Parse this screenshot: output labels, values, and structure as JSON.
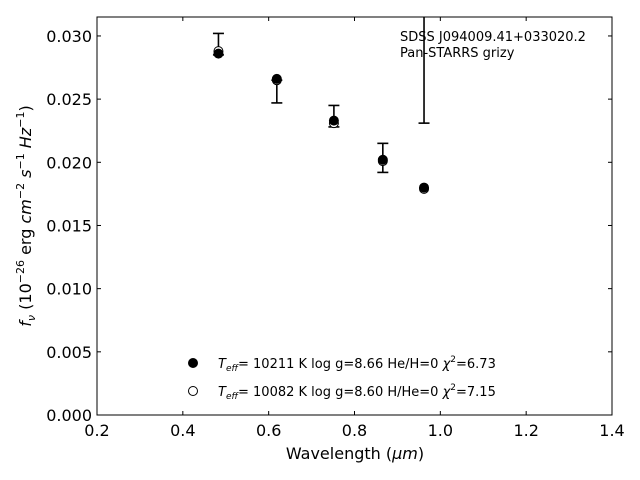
{
  "chart_data": {
    "type": "scatter",
    "title": "",
    "xlabel_main": "Wavelength (",
    "xlabel_unit": "μm",
    "xlabel_close": ")",
    "ylabel": {
      "f": "f",
      "nu": "ν",
      "open": " (10",
      "exp1": "−26",
      "erg": " erg ",
      "cm": "cm",
      "exp2": "−2",
      "s": " s",
      "exp3": "−1",
      "hz": " Hz",
      "exp4": "−1",
      "close": ")"
    },
    "xlim": [
      0.2,
      1.4
    ],
    "ylim": [
      0.0,
      0.0315
    ],
    "xticks": [
      0.2,
      0.4,
      0.6,
      0.8,
      1.0,
      1.2,
      1.4
    ],
    "xtick_labels": [
      "0.2",
      "0.4",
      "0.6",
      "0.8",
      "1.0",
      "1.2",
      "1.4"
    ],
    "yticks": [
      0.0,
      0.005,
      0.01,
      0.015,
      0.02,
      0.025,
      0.03
    ],
    "ytick_labels": [
      "0.000",
      "0.005",
      "0.010",
      "0.015",
      "0.020",
      "0.025",
      "0.030"
    ],
    "grid": false,
    "annotation": [
      "SDSS J094009.41+033020.2",
      "Pan-STARRS grizy"
    ],
    "observed": [
      {
        "x": 0.483,
        "y_low": 0.0285,
        "y_high": 0.0302
      },
      {
        "x": 0.619,
        "y_low": 0.0247,
        "y_high": 0.0265
      },
      {
        "x": 0.752,
        "y_low": 0.0228,
        "y_high": 0.0245
      },
      {
        "x": 0.866,
        "y_low": 0.0192,
        "y_high": 0.0215
      },
      {
        "x": 0.962,
        "y_low": 0.0231,
        "y_high": 0.0315
      }
    ],
    "series": [
      {
        "marker": "filled",
        "color": "#000000",
        "points": [
          {
            "x": 0.483,
            "y": 0.0286
          },
          {
            "x": 0.619,
            "y": 0.0266
          },
          {
            "x": 0.752,
            "y": 0.0233
          },
          {
            "x": 0.866,
            "y": 0.0202
          },
          {
            "x": 0.962,
            "y": 0.018
          }
        ]
      },
      {
        "marker": "open",
        "color": "#000000",
        "points": [
          {
            "x": 0.483,
            "y": 0.0288
          },
          {
            "x": 0.619,
            "y": 0.0265
          },
          {
            "x": 0.752,
            "y": 0.0231
          },
          {
            "x": 0.866,
            "y": 0.0201
          },
          {
            "x": 0.962,
            "y": 0.0179
          }
        ]
      }
    ],
    "legend": [
      {
        "marker": "filled",
        "T": "T",
        "eff": "eff",
        "rest": "= 10211 K  log g=8.66  He/H=0  ",
        "chi": "χ",
        "sq": "2",
        "chival": "=6.73"
      },
      {
        "marker": "open",
        "T": "T",
        "eff": "eff",
        "rest": "= 10082 K  log g=8.60  H/He=0  ",
        "chi": "χ",
        "sq": "2",
        "chival": "=7.15"
      }
    ]
  }
}
